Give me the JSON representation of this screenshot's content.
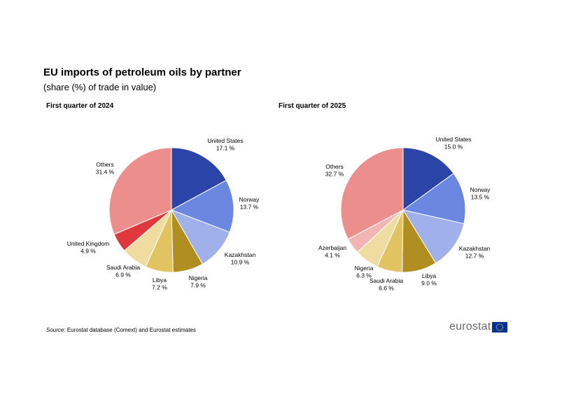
{
  "header": {
    "title": "EU imports of petroleum oils by partner",
    "subtitle": "(share (%) of trade in value)"
  },
  "footer": {
    "source_prefix": "Source:",
    "source_text": "Eurostat database (Comext) and Eurostat estimates",
    "logo_text": "eurostat"
  },
  "colors": {
    "flag_blue": "#003399",
    "flag_stars": "#ffcc00"
  },
  "chart_data": [
    {
      "type": "pie",
      "title": "First quarter of 2024",
      "unit": "%",
      "slices": [
        {
          "label": "United States",
          "value": 17.1,
          "display": "17.1 %",
          "color": "#2a44a8"
        },
        {
          "label": "Norway",
          "value": 13.7,
          "display": "13.7 %",
          "color": "#6b87e0"
        },
        {
          "label": "Kazakhstan",
          "value": 10.9,
          "display": "10.9 %",
          "color": "#a0b0ea"
        },
        {
          "label": "Nigeria",
          "value": 7.9,
          "display": "7.9 %",
          "color": "#b08e22"
        },
        {
          "label": "Libya",
          "value": 7.2,
          "display": "7.2 %",
          "color": "#e1c461"
        },
        {
          "label": "Saudi Arabia",
          "value": 6.9,
          "display": "6.9 %",
          "color": "#efdca1"
        },
        {
          "label": "United Kingdom",
          "value": 4.9,
          "display": "4.9 %",
          "color": "#e0393d"
        },
        {
          "label": "Others",
          "value": 31.4,
          "display": "31.4 %",
          "color": "#ec8f8c"
        }
      ]
    },
    {
      "type": "pie",
      "title": "First quarter of 2025",
      "unit": "%",
      "slices": [
        {
          "label": "United States",
          "value": 15.0,
          "display": "15.0 %",
          "color": "#2a44a8"
        },
        {
          "label": "Norway",
          "value": 13.5,
          "display": "13.5 %",
          "color": "#6b87e0"
        },
        {
          "label": "Kazakhstan",
          "value": 12.7,
          "display": "12.7 %",
          "color": "#a0b0ea"
        },
        {
          "label": "Libya",
          "value": 9.0,
          "display": "9.0 %",
          "color": "#b08e22"
        },
        {
          "label": "Saudi Arabia",
          "value": 6.6,
          "display": "6.6 %",
          "color": "#e1c461"
        },
        {
          "label": "Nigeria",
          "value": 6.3,
          "display": "6.3 %",
          "color": "#efdca1"
        },
        {
          "label": "Azerbaijan",
          "value": 4.1,
          "display": "4.1 %",
          "color": "#f2b5b3"
        },
        {
          "label": "Others",
          "value": 32.7,
          "display": "32.7 %",
          "color": "#ec8f8c"
        }
      ]
    }
  ]
}
